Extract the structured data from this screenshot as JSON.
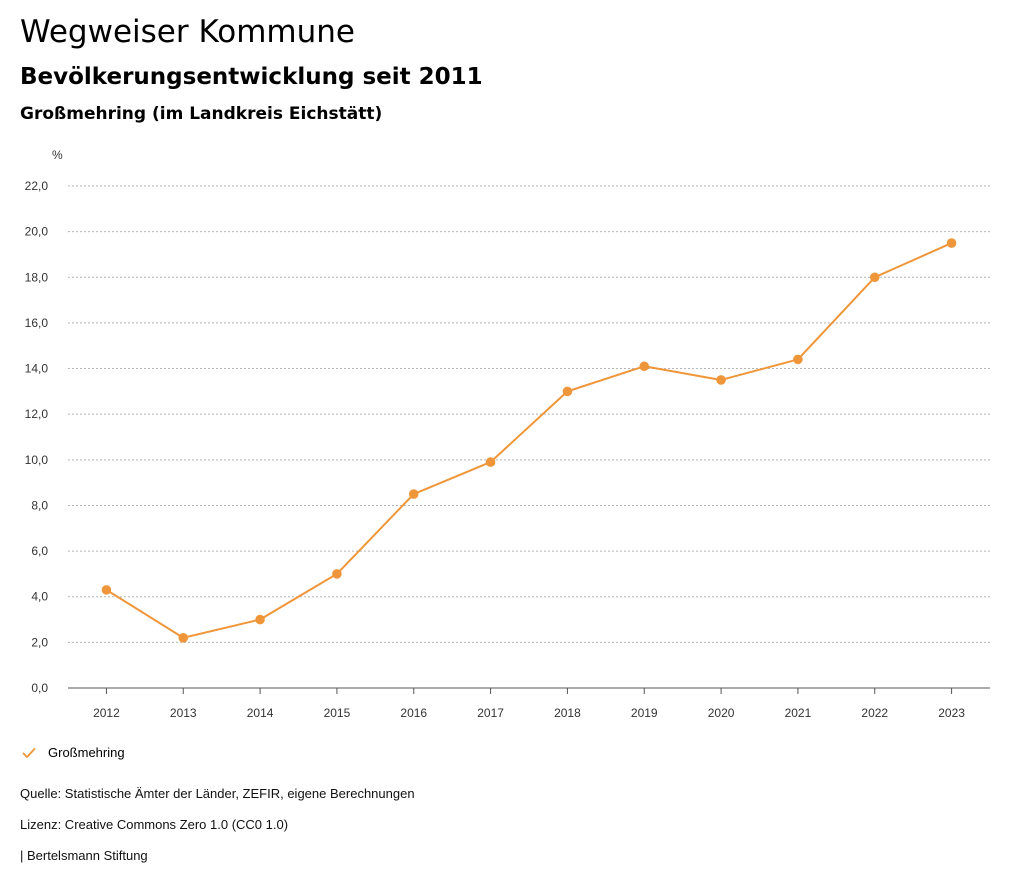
{
  "header": {
    "title": "Wegweiser Kommune",
    "subtitle": "Bevölkerungsentwicklung seit 2011",
    "region": "Großmehring (im Landkreis Eichstätt)"
  },
  "chart_data": {
    "type": "line",
    "title": "Bevölkerungsentwicklung seit 2011",
    "xlabel": "",
    "ylabel": "%",
    "categories": [
      "2012",
      "2013",
      "2014",
      "2015",
      "2016",
      "2017",
      "2018",
      "2019",
      "2020",
      "2021",
      "2022",
      "2023"
    ],
    "series": [
      {
        "name": "Großmehring",
        "values": [
          4.3,
          2.2,
          3.0,
          5.0,
          8.5,
          9.9,
          13.0,
          14.1,
          13.5,
          14.4,
          18.0,
          19.5
        ]
      }
    ],
    "ylim": [
      0,
      22
    ],
    "yticks": [
      "0,0",
      "2,0",
      "4,0",
      "6,0",
      "8,0",
      "10,0",
      "12,0",
      "14,0",
      "16,0",
      "18,0",
      "20,0",
      "22,0"
    ],
    "grid": true,
    "legend": "bottom-left"
  },
  "colors": {
    "series": "#f0963a",
    "grid": "#b5b5b5",
    "axis": "#555555"
  },
  "legend": {
    "label": "Großmehring"
  },
  "footer": {
    "source": "Quelle: Statistische Ämter der Länder, ZEFIR, eigene Berechnungen",
    "license": "Lizenz: Creative Commons Zero 1.0 (CC0 1.0)",
    "publisher": "| Bertelsmann Stiftung"
  }
}
